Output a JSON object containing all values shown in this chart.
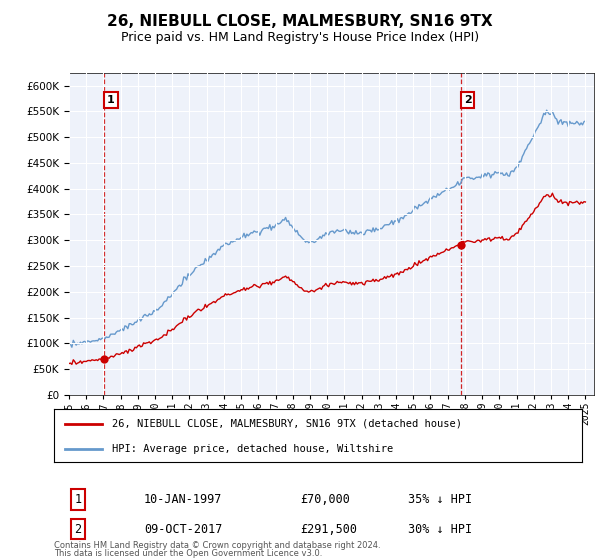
{
  "title": "26, NIEBULL CLOSE, MALMESBURY, SN16 9TX",
  "subtitle": "Price paid vs. HM Land Registry's House Price Index (HPI)",
  "title_fontsize": 11,
  "subtitle_fontsize": 9,
  "yticks": [
    0,
    50000,
    100000,
    150000,
    200000,
    250000,
    300000,
    350000,
    400000,
    450000,
    500000,
    550000,
    600000
  ],
  "ylim": [
    0,
    625000
  ],
  "xlim_start": 1995.0,
  "xlim_end": 2025.5,
  "sale1_date": 1997.04,
  "sale1_price": 70000,
  "sale1_label": "1",
  "sale2_date": 2017.77,
  "sale2_price": 291500,
  "sale2_label": "2",
  "property_color": "#cc0000",
  "hpi_color": "#6699cc",
  "background_color": "#eef2fa",
  "legend_label_property": "26, NIEBULL CLOSE, MALMESBURY, SN16 9TX (detached house)",
  "legend_label_hpi": "HPI: Average price, detached house, Wiltshire",
  "footer1": "Contains HM Land Registry data © Crown copyright and database right 2024.",
  "footer2": "This data is licensed under the Open Government Licence v3.0.",
  "table_row1_num": "1",
  "table_row1_date": "10-JAN-1997",
  "table_row1_price": "£70,000",
  "table_row1_hpi": "35% ↓ HPI",
  "table_row2_num": "2",
  "table_row2_date": "09-OCT-2017",
  "table_row2_price": "£291,500",
  "table_row2_hpi": "30% ↓ HPI"
}
